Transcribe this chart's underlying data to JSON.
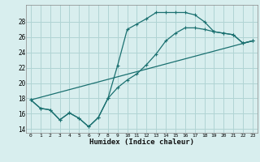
{
  "xlabel": "Humidex (Indice chaleur)",
  "bg_color": "#d8eeee",
  "grid_color": "#b0d4d4",
  "line_color": "#1a7070",
  "xlim": [
    -0.5,
    23.5
  ],
  "ylim": [
    13.5,
    30.2
  ],
  "xticks": [
    0,
    1,
    2,
    3,
    4,
    5,
    6,
    7,
    8,
    9,
    10,
    11,
    12,
    13,
    14,
    15,
    16,
    17,
    18,
    19,
    20,
    21,
    22,
    23
  ],
  "yticks": [
    14,
    16,
    18,
    20,
    22,
    24,
    26,
    28
  ],
  "line1_x": [
    0,
    1,
    2,
    3,
    4,
    5,
    6,
    7,
    8,
    9,
    10,
    11,
    12,
    13,
    14,
    15,
    16,
    17,
    18,
    19,
    20,
    21,
    22,
    23
  ],
  "line1_y": [
    17.8,
    16.7,
    16.5,
    15.2,
    16.1,
    15.4,
    14.3,
    15.5,
    18.0,
    22.3,
    27.0,
    27.7,
    28.4,
    29.2,
    29.2,
    29.2,
    29.2,
    28.9,
    28.0,
    26.7,
    26.5,
    26.3,
    25.2,
    25.5
  ],
  "line2_x": [
    0,
    1,
    2,
    3,
    4,
    5,
    6,
    7,
    8,
    9,
    10,
    11,
    12,
    13,
    14,
    15,
    16,
    17,
    18,
    19,
    20,
    21,
    22,
    23
  ],
  "line2_y": [
    17.8,
    16.7,
    16.5,
    15.2,
    16.1,
    15.4,
    14.3,
    15.5,
    18.0,
    19.4,
    20.4,
    21.2,
    22.4,
    23.8,
    25.5,
    26.5,
    27.2,
    27.2,
    27.0,
    26.7,
    26.5,
    26.3,
    25.2,
    25.5
  ],
  "line3_x": [
    0,
    23
  ],
  "line3_y": [
    17.8,
    25.5
  ]
}
